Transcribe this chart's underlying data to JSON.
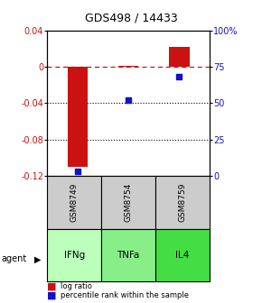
{
  "title": "GDS498 / 14433",
  "samples": [
    "GSM8749",
    "GSM8754",
    "GSM8759"
  ],
  "agents": [
    "IFNg",
    "TNFa",
    "IL4"
  ],
  "log_ratios": [
    -0.11,
    0.001,
    0.022
  ],
  "percentile_ranks": [
    3,
    52,
    68
  ],
  "ylim_left": [
    -0.12,
    0.04
  ],
  "ylim_right": [
    0,
    100
  ],
  "left_ticks": [
    0.04,
    0.0,
    -0.04,
    -0.08,
    -0.12
  ],
  "right_ticks": [
    100,
    75,
    50,
    25,
    0
  ],
  "bar_color": "#cc1111",
  "dot_color": "#1111cc",
  "agent_colors": [
    "#bbffbb",
    "#88ee88",
    "#44dd44"
  ],
  "sample_bg_color": "#cccccc",
  "title_fontsize": 9,
  "tick_fontsize": 7,
  "label_fontsize": 7
}
